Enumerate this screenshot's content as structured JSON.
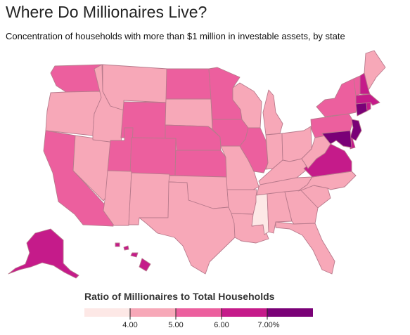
{
  "title": "Where Do Millionaires Live?",
  "subtitle": "Concentration of households with more than $1 million in investable assets, by state",
  "legend": {
    "title": "Ratio of Millionaires to Total Households",
    "ticks": [
      "4.00",
      "5.00",
      "6.00",
      "7.00%"
    ],
    "colors": [
      "#fde8e6",
      "#f7a8b8",
      "#ec5f9e",
      "#c51b8a",
      "#7a0177"
    ]
  },
  "map_data": {
    "type": "choropleth",
    "region": "United States",
    "bins": [
      {
        "range": "< 4.00",
        "color": "#fde8e6"
      },
      {
        "range": "4.00 – 5.00",
        "color": "#f7a8b8"
      },
      {
        "range": "5.00 – 6.00",
        "color": "#ec5f9e"
      },
      {
        "range": "6.00 – 7.00",
        "color": "#c51b8a"
      },
      {
        "range": "> 7.00",
        "color": "#7a0177"
      }
    ],
    "states": {
      "WA": 2,
      "OR": 1,
      "CA": 2,
      "NV": 1,
      "ID": 1,
      "MT": 1,
      "WY": 2,
      "UT": 2,
      "AZ": 1,
      "CO": 2,
      "NM": 1,
      "ND": 2,
      "SD": 1,
      "NE": 2,
      "KS": 2,
      "OK": 1,
      "TX": 1,
      "MN": 2,
      "IA": 2,
      "MO": 1,
      "AR": 1,
      "LA": 1,
      "WI": 1,
      "IL": 2,
      "MS": 0,
      "MI": 1,
      "IN": 1,
      "KY": 1,
      "TN": 1,
      "AL": 1,
      "OH": 1,
      "GA": 1,
      "FL": 1,
      "SC": 1,
      "NC": 1,
      "VA": 3,
      "WV": 1,
      "PA": 2,
      "NY": 2,
      "VT": 2,
      "NH": 3,
      "ME": 1,
      "MA": 3,
      "RI": 3,
      "CT": 4,
      "NJ": 4,
      "DE": 3,
      "MD": 4,
      "AK": 3,
      "HI": 3
    }
  }
}
